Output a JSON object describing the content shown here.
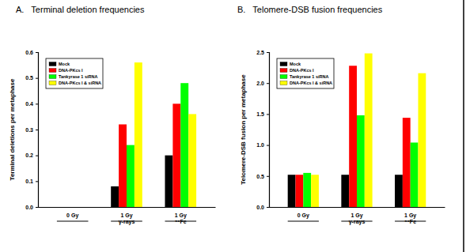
{
  "chart_data": [
    {
      "type": "bar",
      "title": "A.   Terminal deletion frequencies",
      "y_label": "Terminal deletions per metaphase",
      "categories": [
        "0 Gy",
        "1 Gy\nγ-rays",
        "1 Gy\n⁵⁶Fe"
      ],
      "series": [
        {
          "name": "Mock",
          "color": "#000000",
          "values": [
            0,
            0.08,
            0.2
          ]
        },
        {
          "name": "DNA-PKcs I",
          "color": "#ff0000",
          "values": [
            0,
            0.32,
            0.4
          ]
        },
        {
          "name": "Tankyrase 1 siRNA",
          "color": "#00ff00",
          "values": [
            0,
            0.24,
            0.48
          ]
        },
        {
          "name": "DNA-PKcs I & siRNA",
          "color": "#ffff00",
          "values": [
            0,
            0.56,
            0.36
          ]
        }
      ],
      "ylim": [
        0,
        0.6
      ],
      "yticks": [
        {
          "value": 0,
          "label": "0.0"
        },
        0.1,
        0.2,
        0.3,
        0.4,
        0.5,
        0.6
      ],
      "legend": "upper left"
    },
    {
      "type": "bar",
      "title": "B.   Telomere-DSB fusion frequencies",
      "y_label": "Telomere-DSB fusion per metaphase",
      "categories": [
        "0 Gy",
        "1 Gy\nγ-rays",
        "1 Gy\n⁵⁶Fe"
      ],
      "series": [
        {
          "name": "Mock",
          "color": "#000000",
          "values": [
            0.52,
            0.52,
            0.52
          ]
        },
        {
          "name": "DNA-PKcs I",
          "color": "#ff0000",
          "values": [
            0.52,
            2.28,
            1.44
          ]
        },
        {
          "name": "Tankyrase 1 siRNA",
          "color": "#00ff00",
          "values": [
            0.55,
            1.48,
            1.04
          ]
        },
        {
          "name": "DNA-PKcs I & siRNA",
          "color": "#ffff00",
          "values": [
            0.52,
            2.48,
            2.16
          ]
        }
      ],
      "ylim": [
        0,
        2.5
      ],
      "yticks": [
        {
          "value": 0,
          "label": "0.0"
        },
        0.5,
        {
          "value": 1,
          "label": "1.0"
        },
        1.5,
        {
          "value": 2,
          "label": "2.0"
        },
        2.5
      ],
      "legend": "upper left"
    }
  ]
}
